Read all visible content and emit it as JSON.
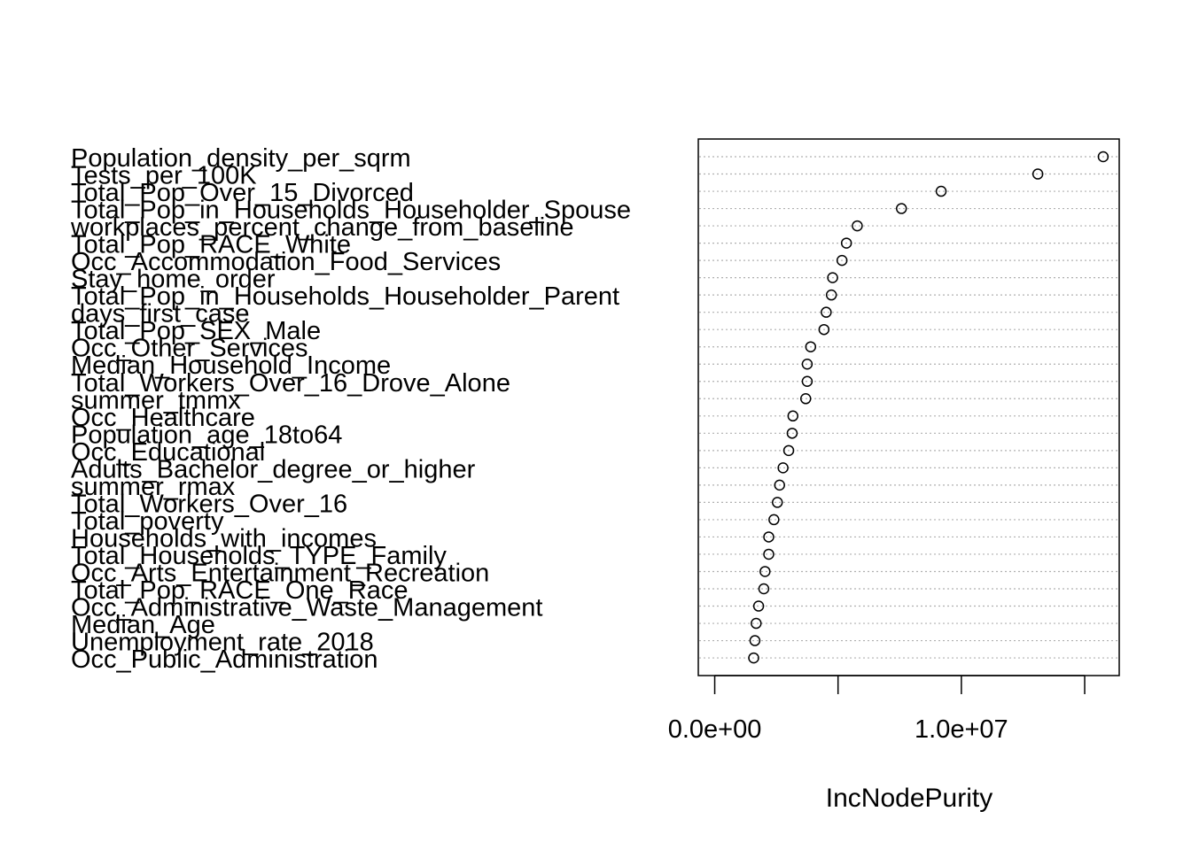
{
  "chart_data": {
    "type": "scatter",
    "title": "",
    "xlabel": "IncNodePurity",
    "ylabel": "",
    "xlim": [
      -666000,
      16400000
    ],
    "x_ticks": [
      0,
      5000000,
      10000000,
      15000000
    ],
    "x_tick_labels": [
      "0.0e+00",
      "",
      "1.0e+07",
      ""
    ],
    "grid": "dotted horizontal lines per variable",
    "categories": [
      "Population_density_per_sqrm",
      "Tests_per_100K",
      "Total_Pop_Over_15_Divorced",
      "Total_Pop_in_Households_Householder_Spouse",
      "workplaces_percent_change_from_baseline",
      "Total_Pop_RACE_White",
      "Occ_Accommodation_Food_Services",
      "Stay_home_order",
      "Total_Pop_in_Households_Householder_Parent",
      "days_first_case",
      "Total_Pop_SEX_Male",
      "Occ_Other_Services",
      "Median_Household_Income",
      "Total_Workers_Over_16_Drove_Alone",
      "summer_tmmx",
      "Occ_Healthcare",
      "Population_age_18to64",
      "Occ_Educational",
      "Adults_Bachelor_degree_or_higher",
      "summer_rmax",
      "Total_Workers_Over_16",
      "Total_poverty",
      "Households_with_incomes",
      "Total_Households_TYPE_Family",
      "Occ_Arts_Entertainment_Recreation",
      "Total_Pop_RACE_One_Race",
      "Occ_Administrative_Waste_Management",
      "Median_Age",
      "Unemployment_rate_2018",
      "Occ_Public_Administration"
    ],
    "values": [
      15750000,
      13100000,
      9180000,
      7570000,
      5780000,
      5340000,
      5160000,
      4780000,
      4730000,
      4520000,
      4430000,
      3890000,
      3750000,
      3750000,
      3690000,
      3170000,
      3140000,
      3000000,
      2770000,
      2630000,
      2540000,
      2400000,
      2190000,
      2190000,
      2040000,
      1990000,
      1780000,
      1680000,
      1630000,
      1580000
    ]
  }
}
